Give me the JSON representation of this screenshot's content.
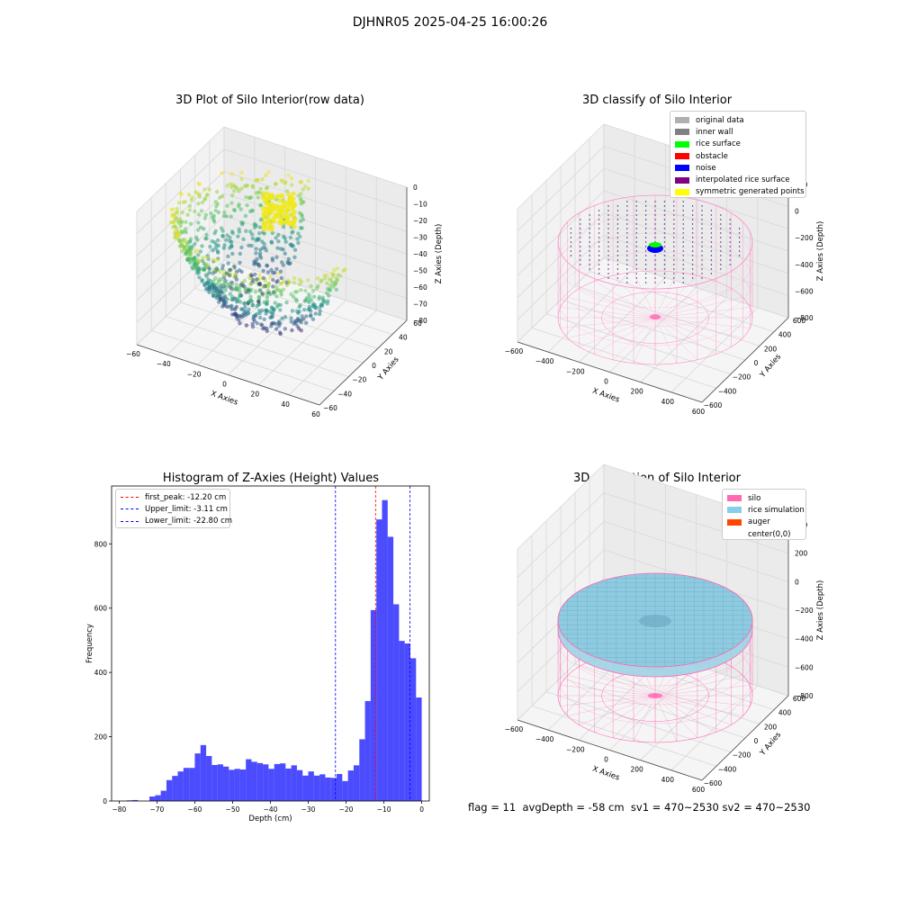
{
  "suptitle": "DJHNR05 2025-04-25 16:00:26",
  "panels": {
    "raw": {
      "title": "3D Plot of Silo Interior(row data)",
      "xlabel": "X Axies",
      "ylabel": "Y Axies",
      "zlabel": "Z Axies (Depth)",
      "xticks": [
        "−60",
        "−40",
        "−20",
        "0",
        "20",
        "40",
        "60"
      ],
      "yticks": [
        "−60",
        "−40",
        "−20",
        "0",
        "20",
        "40",
        "60"
      ],
      "zticks": [
        "−80",
        "−70",
        "−60",
        "−50",
        "−40",
        "−30",
        "−20",
        "−10",
        "0"
      ]
    },
    "classify": {
      "title": "3D classify of Silo Interior",
      "xlabel": "X Axies",
      "ylabel": "Y Axies",
      "zlabel": "Z Axies (Depth)",
      "xticks": [
        "−600",
        "−400",
        "−200",
        "0",
        "200",
        "400",
        "600"
      ],
      "yticks": [
        "−600",
        "−400",
        "−200",
        "0",
        "200",
        "400",
        "600"
      ],
      "zticks": [
        "−800",
        "−600",
        "−400",
        "−200",
        "0",
        "200"
      ],
      "legend": [
        {
          "label": "original data",
          "color": "#b0b0b0"
        },
        {
          "label": "inner wall",
          "color": "#808080"
        },
        {
          "label": "rice surface",
          "color": "#00ff00"
        },
        {
          "label": "obstacle",
          "color": "#ff0000"
        },
        {
          "label": "noise",
          "color": "#0000ff"
        },
        {
          "label": "interpolated rice surface",
          "color": "#800080"
        },
        {
          "label": "symmetric generated points",
          "color": "#ffff00"
        }
      ]
    },
    "simulation": {
      "title": "3D simulation of Silo Interior",
      "xlabel": "X Axies",
      "ylabel": "Y Axies",
      "zlabel": "Z Axies (Depth)",
      "xticks": [
        "−600",
        "−400",
        "−200",
        "0",
        "200",
        "400",
        "600"
      ],
      "yticks": [
        "−600",
        "−400",
        "−200",
        "0",
        "200",
        "400",
        "600"
      ],
      "zticks": [
        "−800",
        "−600",
        "−400",
        "−200",
        "0",
        "200",
        "400"
      ],
      "legend": [
        {
          "label": "silo",
          "color": "#ff69b4"
        },
        {
          "label": "rice simulation",
          "color": "#87ceeb"
        },
        {
          "label": "auger",
          "color": "#ff4500"
        },
        {
          "label": "center(0,0)",
          "color": "#ffffff"
        }
      ]
    }
  },
  "status": {
    "flag": "flag = 11",
    "avg_depth": "avgDepth = -58 cm",
    "sv1": "sv1 = 470~2530",
    "sv2": "sv2 = 470~2530"
  },
  "chart_data": {
    "type": "bar",
    "title": "Histogram of Z-Axies (Height) Values",
    "xlabel": "Depth (cm)",
    "ylabel": "Frequency",
    "xlim": [
      -82,
      2
    ],
    "ylim": [
      0,
      980
    ],
    "xticks": [
      -80,
      -70,
      -60,
      -50,
      -40,
      -30,
      -20,
      -10,
      0
    ],
    "yticks": [
      0,
      200,
      400,
      600,
      800
    ],
    "bar_color": "#0000ff",
    "bin_width": 1.5,
    "bin_edges_start": -78,
    "values": [
      2,
      3,
      0,
      0,
      14,
      18,
      32,
      65,
      78,
      92,
      103,
      103,
      148,
      174,
      140,
      112,
      114,
      107,
      97,
      100,
      98,
      130,
      122,
      118,
      114,
      100,
      115,
      117,
      101,
      111,
      96,
      79,
      92,
      79,
      83,
      73,
      72,
      84,
      62,
      95,
      111,
      192,
      311,
      594,
      876,
      936,
      822,
      612,
      498,
      490,
      444,
      322
    ],
    "lines": [
      {
        "label": "first_peak: -12.20 cm",
        "x": -12.2,
        "color": "#ff0000"
      },
      {
        "label": "Upper_limit: -3.11 cm",
        "x": -3.11,
        "color": "#0000ff"
      },
      {
        "label": "Lower_limit: -22.80 cm",
        "x": -22.8,
        "color": "#0000ff"
      }
    ],
    "legend_position": "upper left"
  }
}
